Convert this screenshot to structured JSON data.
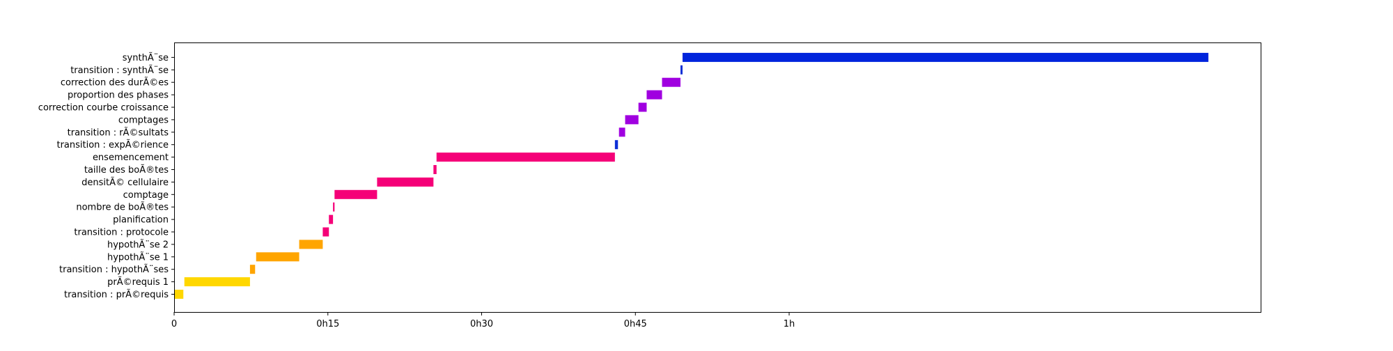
{
  "chart_data": {
    "type": "bar",
    "orientation": "horizontal",
    "grid": false,
    "xlim": [
      0,
      106
    ],
    "x_ticks": [
      {
        "value": 0,
        "label": "0"
      },
      {
        "value": 15,
        "label": "0h15"
      },
      {
        "value": 30,
        "label": "0h30"
      },
      {
        "value": 45,
        "label": "0h45"
      },
      {
        "value": 60,
        "label": "1h"
      }
    ],
    "tasks": [
      {
        "label": "transition : prÃ©requis",
        "start": 0.0,
        "end": 0.9,
        "color": "#ffd700"
      },
      {
        "label": "prÃ©requis 1",
        "start": 1.0,
        "end": 7.4,
        "color": "#ffd700"
      },
      {
        "label": "transition : hypothÃ¨ses",
        "start": 7.4,
        "end": 7.9,
        "color": "#ffa500"
      },
      {
        "label": "hypothÃ¨se 1",
        "start": 8.0,
        "end": 12.2,
        "color": "#ffa500"
      },
      {
        "label": "hypothÃ¨se 2",
        "start": 12.2,
        "end": 14.5,
        "color": "#ffa500"
      },
      {
        "label": "transition : protocole",
        "start": 14.5,
        "end": 15.1,
        "color": "#f50078"
      },
      {
        "label": "planification",
        "start": 15.1,
        "end": 15.5,
        "color": "#f50078"
      },
      {
        "label": "nombre de boÃ®tes",
        "start": 15.5,
        "end": 15.65,
        "color": "#f50078"
      },
      {
        "label": "comptage",
        "start": 15.65,
        "end": 19.8,
        "color": "#f50078"
      },
      {
        "label": "densitÃ© cellulaire",
        "start": 19.8,
        "end": 25.3,
        "color": "#f50078"
      },
      {
        "label": "taille des boÃ®tes",
        "start": 25.3,
        "end": 25.6,
        "color": "#f50078"
      },
      {
        "label": "ensemencement",
        "start": 25.6,
        "end": 43.0,
        "color": "#f50078"
      },
      {
        "label": "transition : expÃ©rience",
        "start": 43.0,
        "end": 43.3,
        "color": "#0d2fd6"
      },
      {
        "label": "transition : rÃ©sultats",
        "start": 43.4,
        "end": 44.0,
        "color": "#a000e0"
      },
      {
        "label": "comptages",
        "start": 44.0,
        "end": 45.3,
        "color": "#a000e0"
      },
      {
        "label": "correction courbe croissance",
        "start": 45.3,
        "end": 46.1,
        "color": "#a000e0"
      },
      {
        "label": "proportion des phases",
        "start": 46.1,
        "end": 47.6,
        "color": "#a000e0"
      },
      {
        "label": "correction des durÃ©es",
        "start": 47.6,
        "end": 49.4,
        "color": "#a000e0"
      },
      {
        "label": "transition : synthÃ¨se",
        "start": 49.4,
        "end": 49.6,
        "color": "#0d2fd6"
      },
      {
        "label": "synthÃ¨se",
        "start": 49.6,
        "end": 100.9,
        "color": "#0024dc"
      }
    ]
  }
}
